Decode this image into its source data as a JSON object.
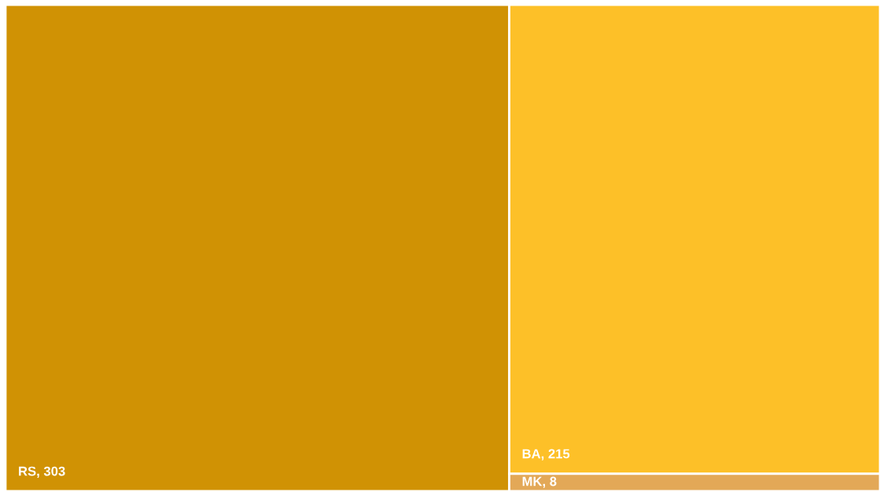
{
  "chart_data": {
    "type": "other",
    "categories": [
      "RS",
      "BA",
      "MK"
    ],
    "values": [
      303,
      215,
      8
    ],
    "value_labels": [
      ", 303",
      ", 215",
      ", 8"
    ],
    "colors": [
      "#d09204",
      "#fdc028",
      "#e3a857"
    ]
  }
}
